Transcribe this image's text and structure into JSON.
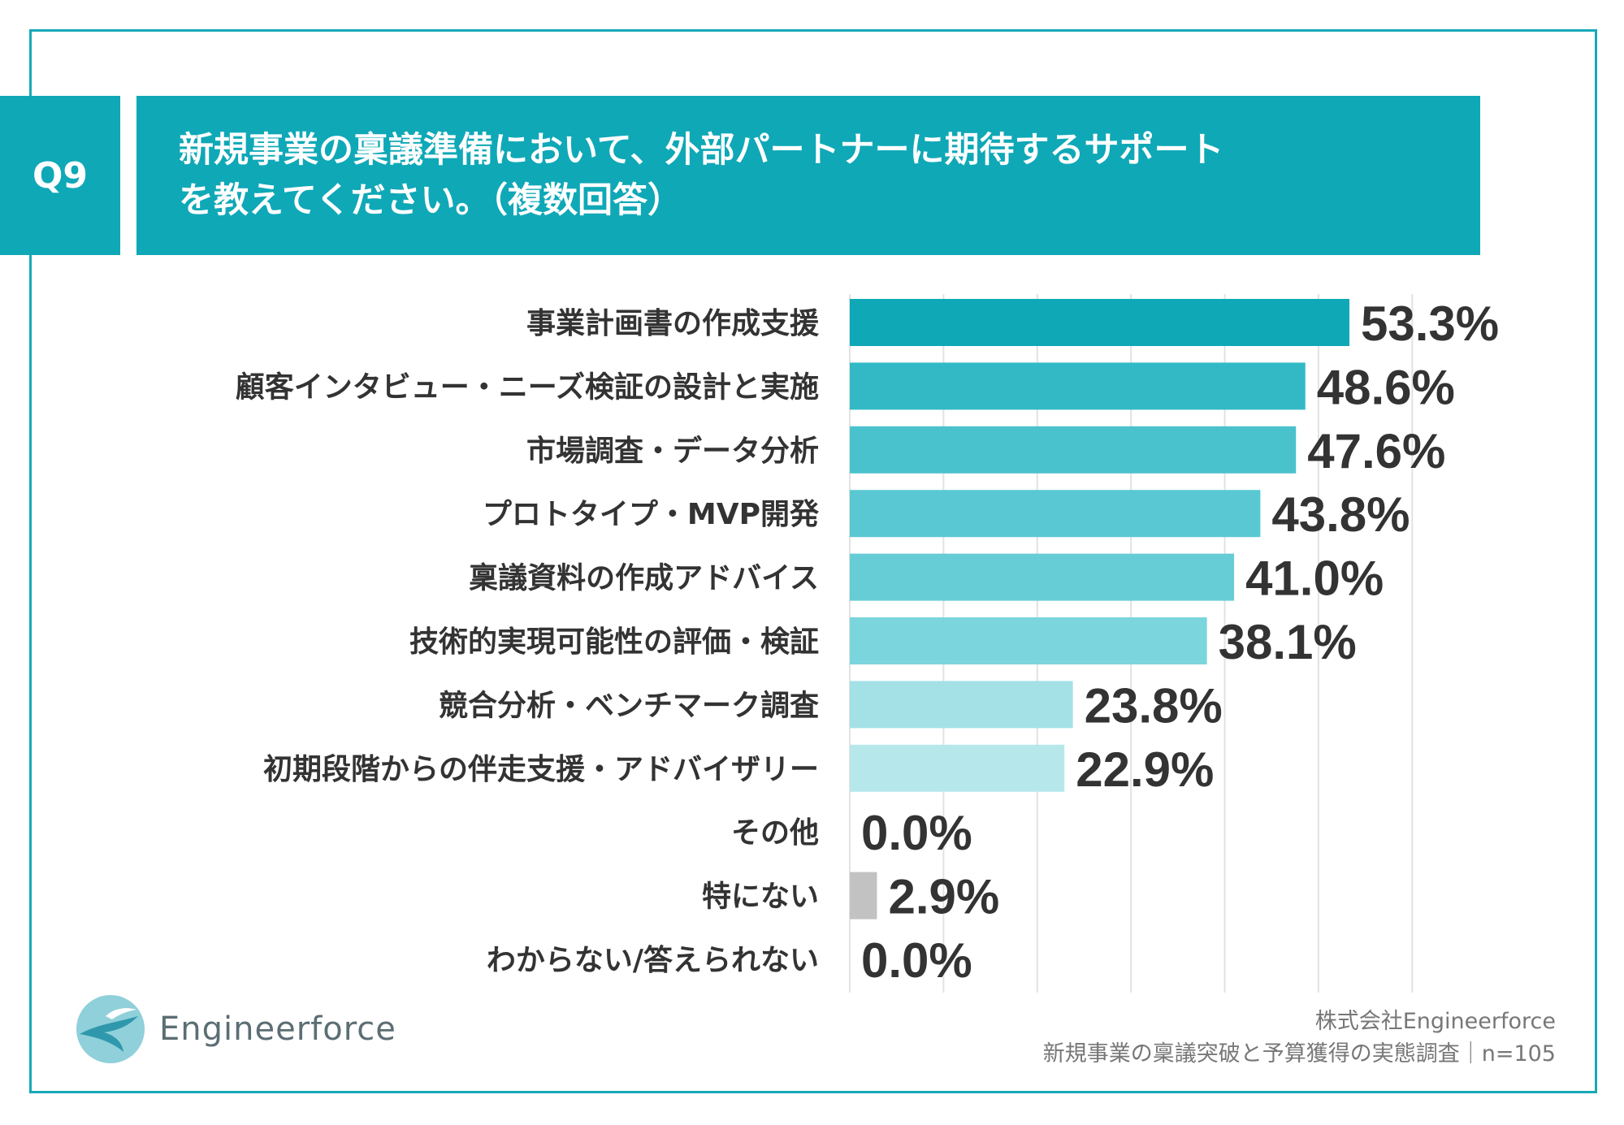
{
  "header": {
    "badge": "Q9",
    "title_line1": "新規事業の稟議準備において、外部パートナーに期待するサポート",
    "title_line2": "を教えてください。（複数回答）"
  },
  "chart_data": {
    "type": "bar",
    "orientation": "horizontal",
    "title": "新規事業の稟議準備において、外部パートナーに期待するサポートを教えてください。（複数回答）",
    "categories": [
      "事業計画書の作成支援",
      "顧客インタビュー・ニーズ検証の設計と実施",
      "市場調査・データ分析",
      "プロトタイプ・MVP開発",
      "稟議資料の作成アドバイス",
      "技術的実現可能性の評価・検証",
      "競合分析・ベンチマーク調査",
      "初期段階からの伴走支援・アドバイザリー",
      "その他",
      "特にない",
      "わからない/答えられない"
    ],
    "values": [
      53.3,
      48.6,
      47.6,
      43.8,
      41.0,
      38.1,
      23.8,
      22.9,
      0.0,
      2.9,
      0.0
    ],
    "value_labels": [
      "53.3%",
      "48.6%",
      "47.6%",
      "43.8%",
      "41.0%",
      "38.1%",
      "23.8%",
      "22.9%",
      "0.0%",
      "2.9%",
      "0.0%"
    ],
    "colors": [
      "#0fa8b7",
      "#33b9c6",
      "#4ac2cd",
      "#59c8d2",
      "#66cdd6",
      "#7bd5dc",
      "#a3e1e6",
      "#b6e8eb",
      "#cccccc",
      "#c2c2c2",
      "#cccccc"
    ],
    "xlim": [
      0,
      60
    ],
    "grid": true,
    "unit": "%"
  },
  "branding": {
    "logo_text": "Engineerforce",
    "logo_colors": [
      "#3aa7b8",
      "#7fc8d2"
    ]
  },
  "source": {
    "company": "株式会社Engineerforce",
    "survey": "新規事業の稟議突破と予算獲得の実態調査｜n=105"
  }
}
